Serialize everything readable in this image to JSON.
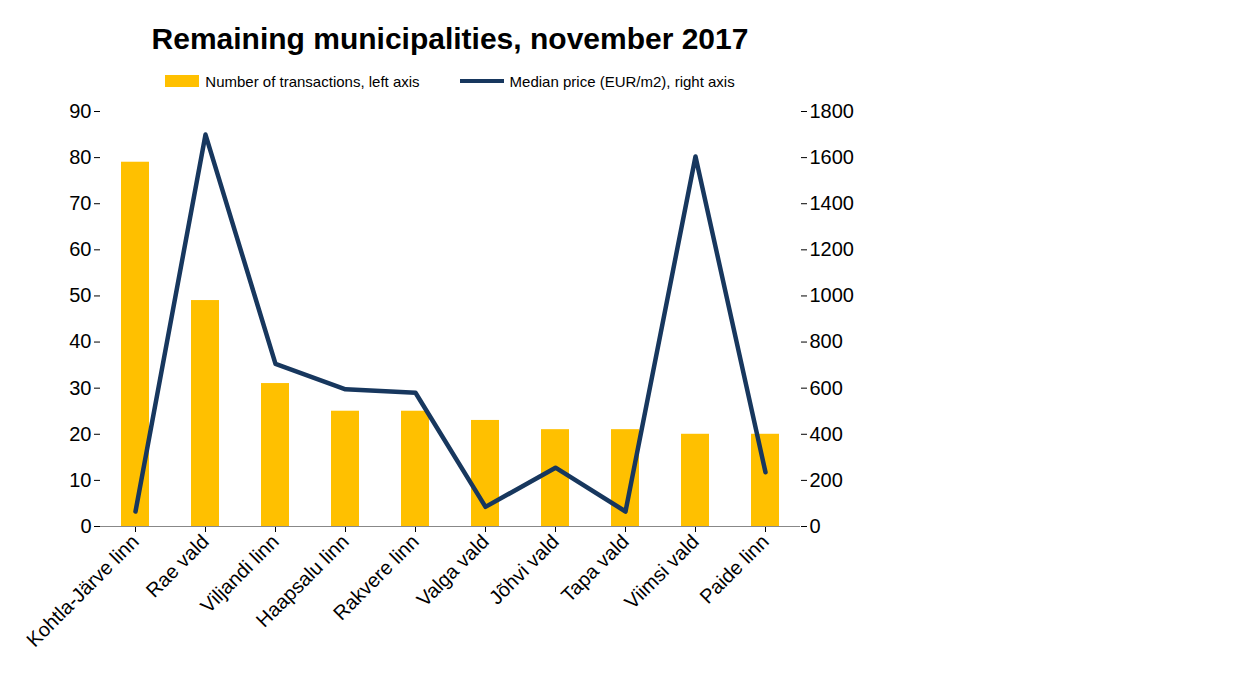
{
  "chart_data": {
    "type": "bar",
    "title": "Remaining municipalities, november 2017",
    "categories": [
      "Kohtla-Järve linn",
      "Rae vald",
      "Viljandi linn",
      "Haapsalu linn",
      "Rakvere linn",
      "Valga vald",
      "Jõhvi vald",
      "Tapa vald",
      "Viimsi vald",
      "Paide linn"
    ],
    "series": [
      {
        "name": "Number of transactions, left axis",
        "type": "bar",
        "color": "#FFC000",
        "values": [
          79,
          49,
          31,
          25,
          25,
          23,
          21,
          21,
          20,
          20
        ]
      },
      {
        "name": "Median price (EUR/m2), right axis",
        "type": "line",
        "color": "#17375E",
        "axis": "y2",
        "values": [
          65,
          1700,
          705,
          595,
          580,
          85,
          255,
          65,
          1605,
          235
        ]
      }
    ],
    "ylim": [
      0,
      90
    ],
    "yticks": [
      0,
      10,
      20,
      30,
      40,
      50,
      60,
      70,
      80,
      90
    ],
    "y2lim": [
      0,
      1800
    ],
    "y2ticks": [
      0,
      200,
      400,
      600,
      800,
      1000,
      1200,
      1400,
      1600,
      1800
    ],
    "grid": false,
    "legend": "top"
  }
}
